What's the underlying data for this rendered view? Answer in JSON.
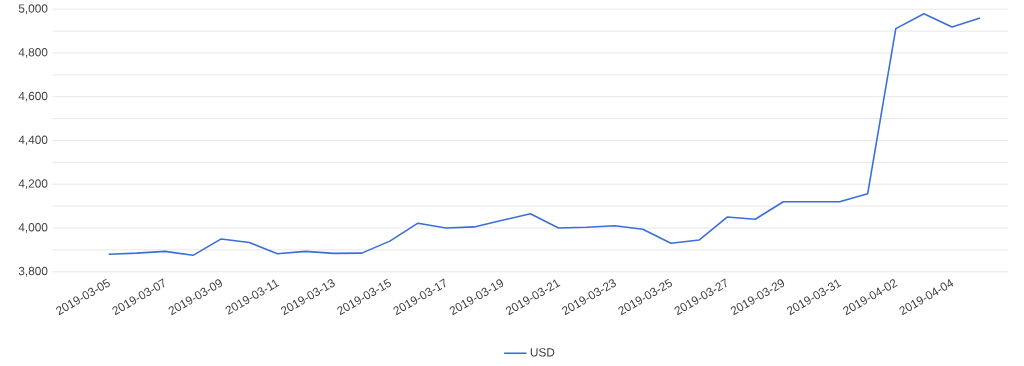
{
  "chart_data": {
    "type": "line",
    "x": [
      "2019-03-05",
      "2019-03-06",
      "2019-03-07",
      "2019-03-08",
      "2019-03-09",
      "2019-03-10",
      "2019-03-11",
      "2019-03-12",
      "2019-03-13",
      "2019-03-14",
      "2019-03-15",
      "2019-03-16",
      "2019-03-17",
      "2019-03-18",
      "2019-03-19",
      "2019-03-20",
      "2019-03-21",
      "2019-03-22",
      "2019-03-23",
      "2019-03-24",
      "2019-03-25",
      "2019-03-26",
      "2019-03-27",
      "2019-03-28",
      "2019-03-29",
      "2019-03-30",
      "2019-03-31",
      "2019-04-01",
      "2019-04-02",
      "2019-04-03",
      "2019-04-04",
      "2019-04-05"
    ],
    "series": [
      {
        "name": "USD",
        "color": "#3a6fd8",
        "values": [
          3880,
          3885,
          3893,
          3875,
          3950,
          3934,
          3882,
          3893,
          3884,
          3885,
          3940,
          4022,
          4000,
          4005,
          4035,
          4065,
          4000,
          4003,
          4010,
          3994,
          3930,
          3945,
          4050,
          4040,
          4120,
          4120,
          4120,
          4157,
          4911,
          4979,
          4919,
          4960
        ]
      }
    ],
    "xlim": [
      "2019-03-03",
      "2019-04-06"
    ],
    "xticks": [
      "2019-03-05",
      "2019-03-07",
      "2019-03-09",
      "2019-03-11",
      "2019-03-13",
      "2019-03-15",
      "2019-03-17",
      "2019-03-19",
      "2019-03-21",
      "2019-03-23",
      "2019-03-25",
      "2019-03-27",
      "2019-03-29",
      "2019-03-31",
      "2019-04-02",
      "2019-04-04"
    ],
    "ylim": [
      3800,
      5000
    ],
    "yticks": [
      {
        "value": 3800,
        "label": "3,800"
      },
      {
        "value": 3900,
        "label": null
      },
      {
        "value": 4000,
        "label": "4,000"
      },
      {
        "value": 4100,
        "label": null
      },
      {
        "value": 4200,
        "label": "4,200"
      },
      {
        "value": 4300,
        "label": null
      },
      {
        "value": 4400,
        "label": "4,400"
      },
      {
        "value": 4500,
        "label": null
      },
      {
        "value": 4600,
        "label": "4,600"
      },
      {
        "value": 4700,
        "label": null
      },
      {
        "value": 4800,
        "label": "4,800"
      },
      {
        "value": 4900,
        "label": null
      },
      {
        "value": 5000,
        "label": "5,000"
      }
    ],
    "grid": "y",
    "legend": "bottom",
    "marker": "none",
    "line_style": "solid"
  }
}
